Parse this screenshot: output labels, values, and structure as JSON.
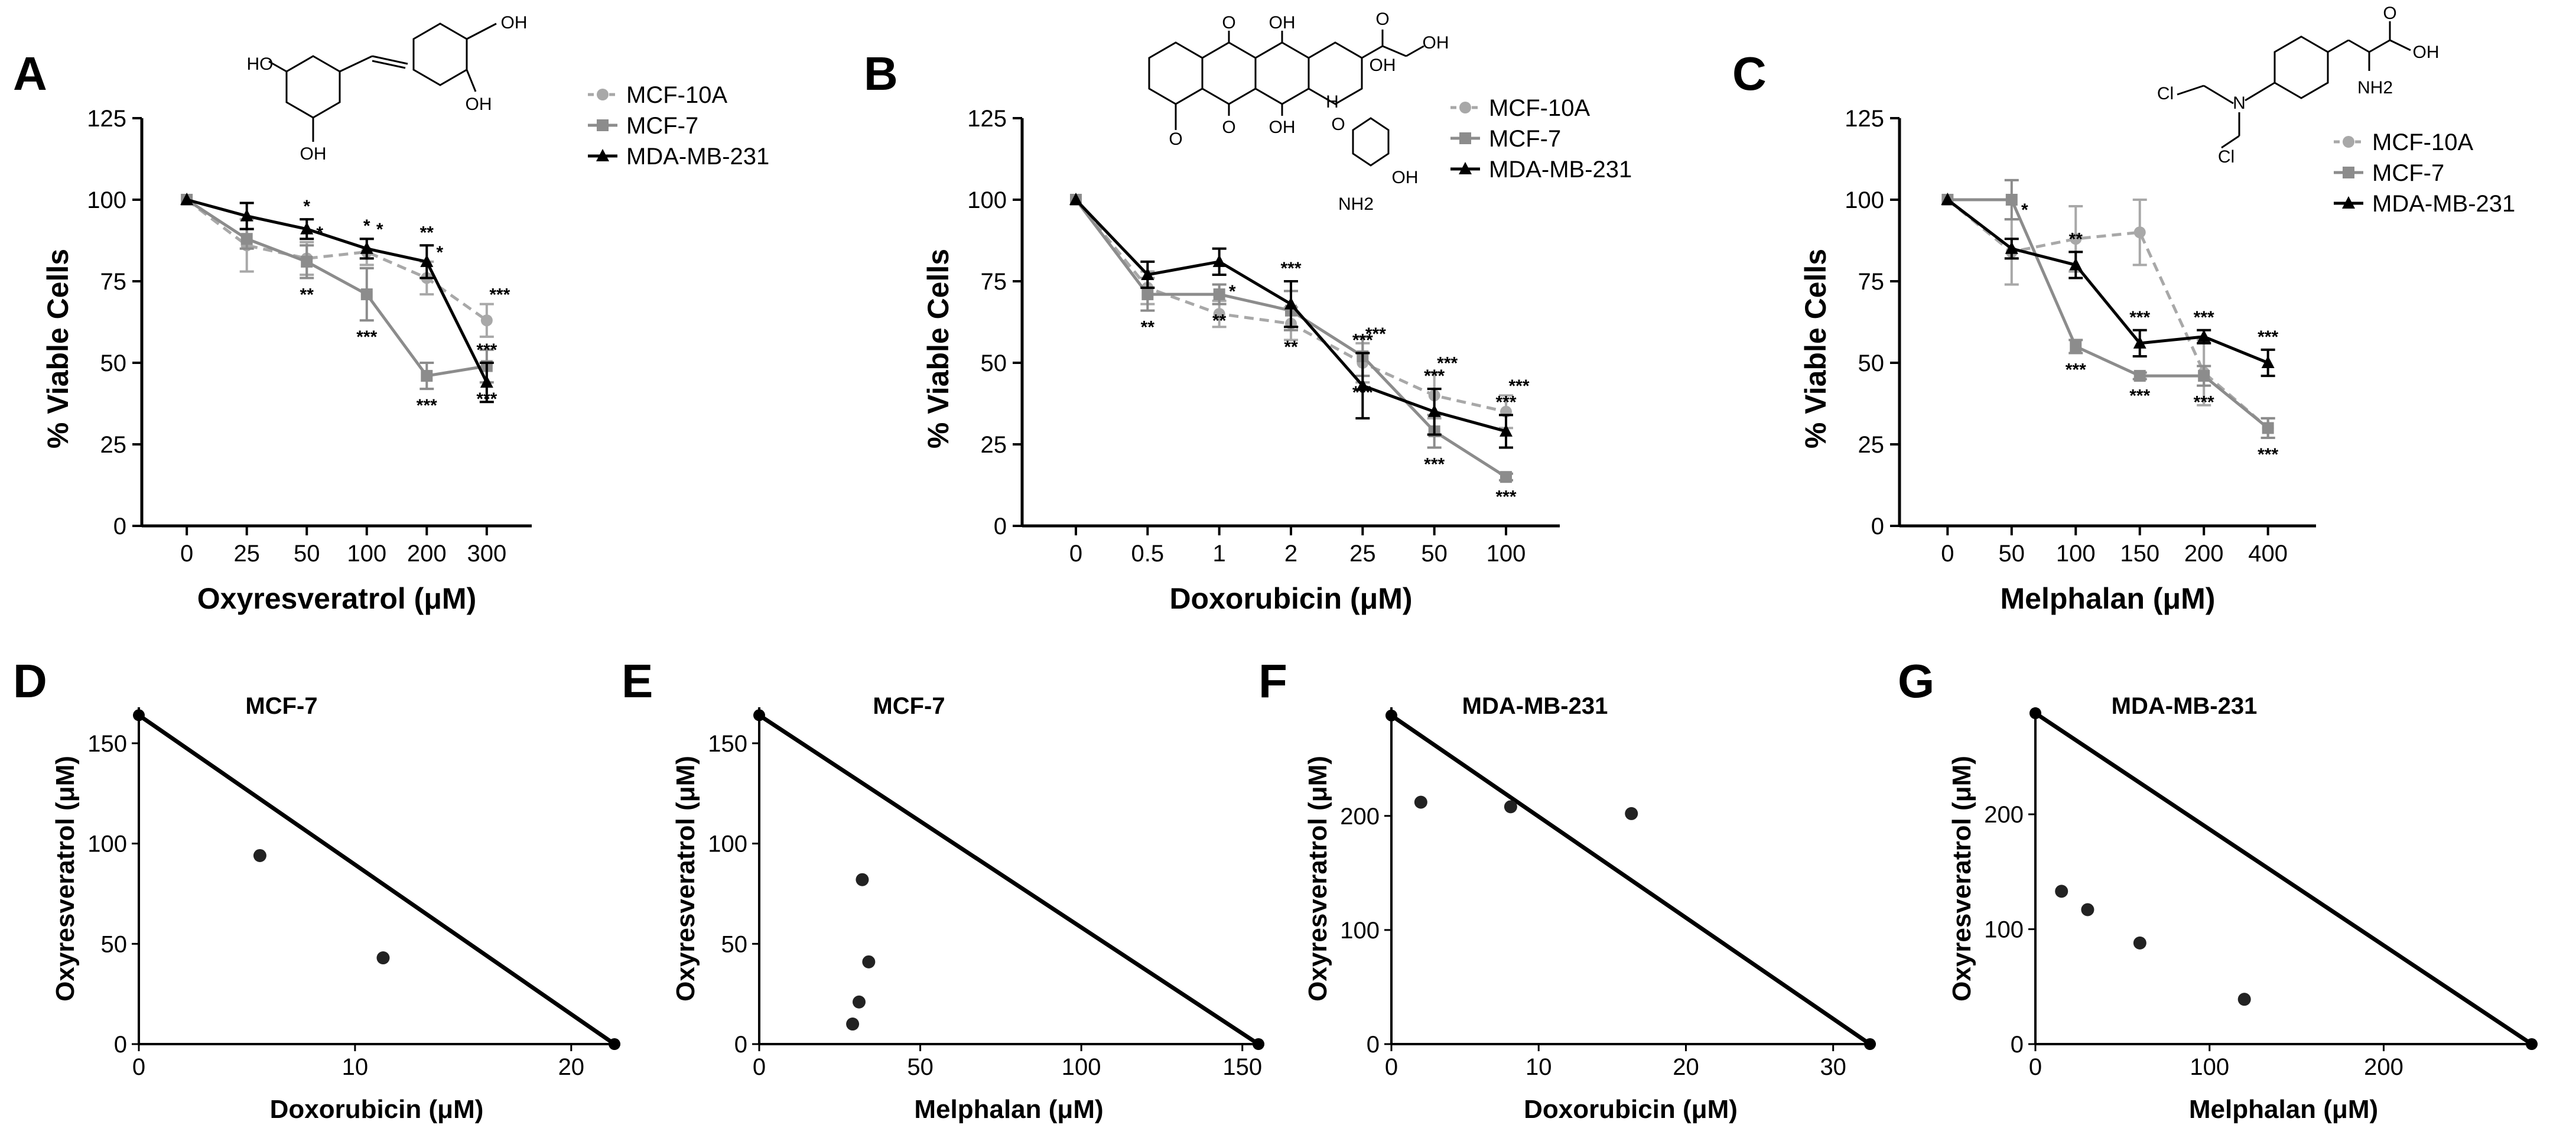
{
  "figure_panels": {
    "A": "A",
    "B": "B",
    "C": "C",
    "D": "D",
    "E": "E",
    "F": "F",
    "G": "G"
  },
  "chem_labels": {
    "A": [
      "HO",
      "OH",
      "OH",
      "OH"
    ],
    "B": [
      "O",
      "OH",
      "O",
      "OH",
      "OH",
      "O",
      "OH",
      "O",
      "H",
      "O",
      "OH",
      "NH2"
    ],
    "C": [
      "O",
      "OH",
      "Cl",
      "N",
      "Cl",
      "NH2"
    ]
  },
  "colors": {
    "mcf10a": "#a8a8a8",
    "mcf7": "#8c8c8c",
    "mdamb231": "#000000"
  },
  "chart_data": [
    {
      "panel": "A",
      "type": "line",
      "xlabel": "Oxyresveratrol (μM)",
      "ylabel": "% Viable Cells",
      "categories": [
        "0",
        "25",
        "50",
        "100",
        "200",
        "300"
      ],
      "ylim": [
        0,
        125
      ],
      "yticks": [
        "0",
        "25",
        "50",
        "75",
        "100",
        "125"
      ],
      "series": [
        {
          "name": "MCF-10A",
          "values": [
            100,
            86,
            82,
            84,
            76,
            63
          ],
          "errors": [
            0,
            8,
            5,
            4,
            5,
            5
          ],
          "style": "dashed-circle",
          "sig": [
            "",
            "",
            "*",
            "*",
            "*",
            "***"
          ]
        },
        {
          "name": "MCF-7",
          "values": [
            100,
            88,
            81,
            71,
            46,
            49
          ],
          "errors": [
            0,
            3,
            5,
            8,
            4,
            5
          ],
          "style": "solid-square",
          "sig": [
            "",
            "",
            "**",
            "***",
            "***",
            "***"
          ]
        },
        {
          "name": "MDA-MB-231",
          "values": [
            100,
            95,
            91,
            85,
            81,
            44
          ],
          "errors": [
            0,
            4,
            3,
            3,
            5,
            6
          ],
          "style": "solid-triangle",
          "sig": [
            "",
            "",
            "*",
            "*",
            "**",
            "***"
          ]
        }
      ]
    },
    {
      "panel": "B",
      "type": "line",
      "xlabel": "Doxorubicin (μM)",
      "ylabel": "% Viable Cells",
      "categories": [
        "0",
        "0.5",
        "1",
        "2",
        "25",
        "50",
        "100"
      ],
      "ylim": [
        0,
        125
      ],
      "yticks": [
        "0",
        "25",
        "50",
        "75",
        "100",
        "125"
      ],
      "series": [
        {
          "name": "MCF-10A",
          "values": [
            100,
            73,
            65,
            62,
            50,
            40,
            35
          ],
          "errors": [
            0,
            5,
            4,
            5,
            6,
            7,
            5
          ],
          "style": "dashed-circle",
          "sig": [
            "",
            "",
            "*",
            "",
            "***",
            "***",
            "***"
          ]
        },
        {
          "name": "MCF-7",
          "values": [
            100,
            71,
            71,
            66,
            52,
            29,
            15
          ],
          "errors": [
            0,
            5,
            3,
            6,
            6,
            5,
            1
          ],
          "style": "solid-square",
          "sig": [
            "",
            "**",
            "**",
            "**",
            "***",
            "***",
            "***"
          ]
        },
        {
          "name": "MDA-MB-231",
          "values": [
            100,
            77,
            81,
            68,
            43,
            35,
            29
          ],
          "errors": [
            0,
            4,
            4,
            7,
            10,
            7,
            5
          ],
          "style": "solid-triangle",
          "sig": [
            "",
            "",
            "",
            "***",
            "***",
            "***",
            "***"
          ]
        }
      ]
    },
    {
      "panel": "C",
      "type": "line",
      "xlabel": "Melphalan (μM)",
      "ylabel": "% Viable Cells",
      "categories": [
        "0",
        "50",
        "100",
        "150",
        "200",
        "400"
      ],
      "ylim": [
        0,
        125
      ],
      "yticks": [
        "0",
        "25",
        "50",
        "75",
        "100",
        "125"
      ],
      "series": [
        {
          "name": "MCF-10A",
          "values": [
            100,
            84,
            88,
            90,
            47,
            30
          ],
          "errors": [
            0,
            10,
            10,
            10,
            10,
            3
          ],
          "style": "dashed-circle",
          "sig": [
            "",
            "*",
            "",
            "",
            "",
            ""
          ]
        },
        {
          "name": "MCF-7",
          "values": [
            100,
            100,
            55,
            46,
            46,
            30
          ],
          "errors": [
            0,
            6,
            2,
            1,
            3,
            3
          ],
          "style": "solid-square",
          "sig": [
            "",
            "",
            "***",
            "***",
            "***",
            "***"
          ]
        },
        {
          "name": "MDA-MB-231",
          "values": [
            100,
            85,
            80,
            56,
            58,
            50
          ],
          "errors": [
            0,
            3,
            4,
            4,
            2,
            4
          ],
          "style": "solid-triangle",
          "sig": [
            "",
            "",
            "**",
            "***",
            "***",
            "***"
          ]
        }
      ]
    },
    {
      "panel": "D",
      "type": "scatter",
      "title": "MCF-7",
      "xlabel": "Doxorubicin (μM)",
      "ylabel": "Oxyresveratrol (μM)",
      "xlim": [
        0,
        22
      ],
      "ylim": [
        0,
        165
      ],
      "xticks": [
        0,
        10,
        20
      ],
      "yticks": [
        0,
        50,
        100,
        150
      ],
      "isobole": [
        [
          0,
          164
        ],
        [
          22,
          0
        ]
      ],
      "points": [
        [
          5.6,
          94
        ],
        [
          11.3,
          43
        ]
      ]
    },
    {
      "panel": "E",
      "type": "scatter",
      "title": "MCF-7",
      "xlabel": "Melphalan (μM)",
      "ylabel": "Oxyresveratrol (μM)",
      "xlim": [
        0,
        155
      ],
      "ylim": [
        0,
        165
      ],
      "xticks": [
        0,
        50,
        100,
        150
      ],
      "yticks": [
        0,
        50,
        100,
        150
      ],
      "isobole": [
        [
          0,
          164
        ],
        [
          155,
          0
        ]
      ],
      "points": [
        [
          32,
          82
        ],
        [
          34,
          41
        ],
        [
          31,
          21
        ],
        [
          29,
          10
        ]
      ]
    },
    {
      "panel": "F",
      "type": "scatter",
      "title": "MDA-MB-231",
      "xlabel": "Doxorubicin (μM)",
      "ylabel": "Oxyresveratrol (μM)",
      "xlim": [
        0,
        32.5
      ],
      "ylim": [
        0,
        290
      ],
      "xticks": [
        0,
        10,
        20,
        30
      ],
      "yticks": [
        0,
        100,
        200
      ],
      "isobole": [
        [
          0,
          288
        ],
        [
          32.5,
          0
        ]
      ],
      "points": [
        [
          2,
          212
        ],
        [
          8.1,
          208
        ],
        [
          16.3,
          202
        ]
      ]
    },
    {
      "panel": "G",
      "type": "scatter",
      "title": "MDA-MB-231",
      "xlabel": "Melphalan (μM)",
      "ylabel": "Oxyresveratrol (μM)",
      "xlim": [
        0,
        285
      ],
      "ylim": [
        0,
        288
      ],
      "xticks": [
        0,
        100,
        200
      ],
      "yticks": [
        0,
        100,
        200
      ],
      "isobole": [
        [
          0,
          288
        ],
        [
          285,
          0
        ]
      ],
      "points": [
        [
          15,
          133
        ],
        [
          30,
          117
        ],
        [
          60,
          88
        ],
        [
          120,
          39
        ]
      ]
    }
  ]
}
